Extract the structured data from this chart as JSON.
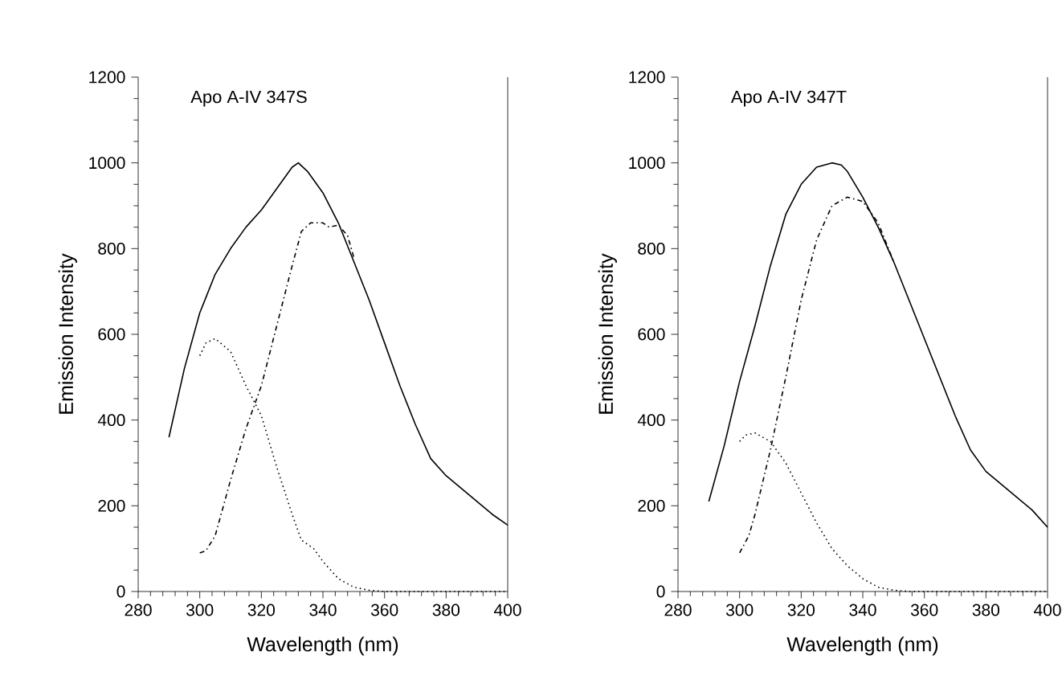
{
  "chart_data": [
    {
      "type": "line",
      "title": "Apo A-IV 347S",
      "xlabel": "Wavelength (nm)",
      "ylabel": "Emission Intensity",
      "xlim": [
        280,
        400
      ],
      "ylim": [
        0,
        1200
      ],
      "xticks": [
        280,
        300,
        320,
        340,
        360,
        380,
        400
      ],
      "yticks": [
        0,
        200,
        400,
        600,
        800,
        1000,
        1200
      ],
      "series": [
        {
          "color": "#000000",
          "line_style": "solid",
          "x": [
            290,
            295,
            300,
            305,
            310,
            315,
            320,
            325,
            330,
            332,
            335,
            340,
            345,
            350,
            355,
            360,
            365,
            370,
            375,
            380,
            385,
            390,
            395,
            400
          ],
          "values": [
            360,
            520,
            650,
            740,
            800,
            850,
            890,
            940,
            990,
            1000,
            980,
            930,
            860,
            770,
            680,
            580,
            480,
            390,
            310,
            270,
            240,
            210,
            180,
            155
          ]
        },
        {
          "color": "#000000",
          "line_style": "dotted",
          "x": [
            300,
            302,
            305,
            310,
            315,
            320,
            325,
            330,
            333,
            337,
            340,
            345,
            350,
            355,
            360,
            400
          ],
          "values": [
            550,
            580,
            590,
            560,
            480,
            410,
            290,
            180,
            120,
            100,
            70,
            30,
            10,
            3,
            0,
            0
          ]
        },
        {
          "color": "#000000",
          "line_style": "dashdot",
          "x": [
            300,
            302,
            305,
            310,
            315,
            320,
            325,
            330,
            333,
            336,
            340,
            342,
            345,
            348,
            350
          ],
          "values": [
            90,
            95,
            130,
            260,
            380,
            480,
            620,
            760,
            840,
            860,
            860,
            850,
            855,
            830,
            780
          ]
        }
      ]
    },
    {
      "type": "line",
      "title": "Apo A-IV 347T",
      "xlabel": "Wavelength (nm)",
      "ylabel": "Emission Intensity",
      "xlim": [
        280,
        400
      ],
      "ylim": [
        0,
        1200
      ],
      "xticks": [
        280,
        300,
        320,
        340,
        360,
        380,
        400
      ],
      "yticks": [
        0,
        200,
        400,
        600,
        800,
        1000,
        1200
      ],
      "series": [
        {
          "color": "#000000",
          "line_style": "solid",
          "x": [
            290,
            295,
            300,
            305,
            310,
            315,
            320,
            325,
            330,
            333,
            335,
            340,
            345,
            350,
            355,
            360,
            365,
            370,
            375,
            380,
            385,
            390,
            395,
            400
          ],
          "values": [
            210,
            340,
            490,
            620,
            760,
            880,
            950,
            990,
            1000,
            995,
            980,
            920,
            850,
            770,
            680,
            590,
            500,
            410,
            330,
            280,
            250,
            220,
            190,
            150
          ]
        },
        {
          "color": "#000000",
          "line_style": "dotted",
          "x": [
            300,
            302,
            305,
            310,
            315,
            320,
            325,
            330,
            335,
            340,
            345,
            350,
            355,
            400
          ],
          "values": [
            350,
            365,
            370,
            350,
            300,
            230,
            160,
            100,
            60,
            30,
            10,
            3,
            0,
            0
          ]
        },
        {
          "color": "#000000",
          "line_style": "dashdot",
          "x": [
            300,
            303,
            305,
            310,
            315,
            320,
            325,
            330,
            335,
            340,
            345,
            350
          ],
          "values": [
            90,
            130,
            180,
            330,
            500,
            680,
            820,
            900,
            920,
            910,
            860,
            770
          ]
        }
      ]
    }
  ]
}
